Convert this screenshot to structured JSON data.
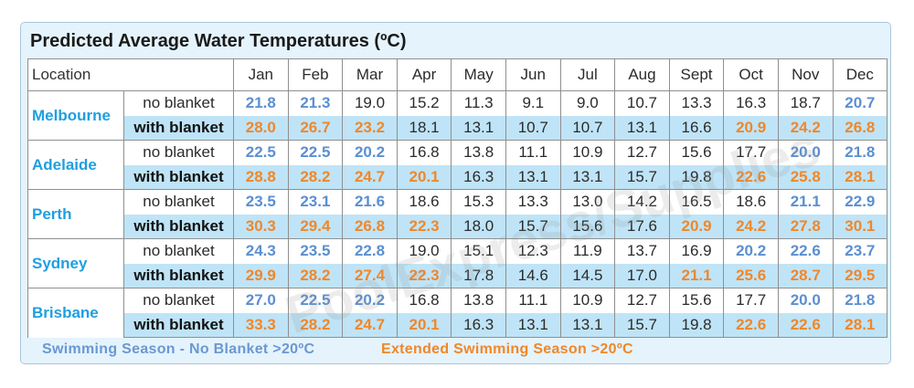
{
  "title": "Predicted Average Water Temperatures (ºC)",
  "header": {
    "location": "Location",
    "months": [
      "Jan",
      "Feb",
      "Mar",
      "Apr",
      "May",
      "Jun",
      "Jul",
      "Aug",
      "Sept",
      "Oct",
      "Nov",
      "Dec"
    ]
  },
  "labels": {
    "no_blanket": "no blanket",
    "with_blanket": "with blanket"
  },
  "colors": {
    "blue": "#5b8fd0",
    "orange": "#f0872a",
    "city": "#1e9fe0",
    "highlight_row": "#bfe4f7"
  },
  "locations": [
    {
      "name": "Melbourne",
      "no_blanket": [
        "21.8",
        "21.3",
        "19.0",
        "15.2",
        "11.3",
        "9.1",
        "9.0",
        "10.7",
        "13.3",
        "16.3",
        "18.7",
        "20.7"
      ],
      "no_blanket_style": [
        "blue",
        "blue",
        "",
        "",
        "",
        "",
        "",
        "",
        "",
        "",
        "",
        "blue"
      ],
      "with_blanket": [
        "28.0",
        "26.7",
        "23.2",
        "18.1",
        "13.1",
        "10.7",
        "10.7",
        "13.1",
        "16.6",
        "20.9",
        "24.2",
        "26.8"
      ],
      "with_blanket_style": [
        "orange",
        "orange",
        "orange",
        "",
        "",
        "",
        "",
        "",
        "",
        "orange",
        "orange",
        "orange"
      ]
    },
    {
      "name": "Adelaide",
      "no_blanket": [
        "22.5",
        "22.5",
        "20.2",
        "16.8",
        "13.8",
        "11.1",
        "10.9",
        "12.7",
        "15.6",
        "17.7",
        "20.0",
        "21.8"
      ],
      "no_blanket_style": [
        "blue",
        "blue",
        "blue",
        "",
        "",
        "",
        "",
        "",
        "",
        "",
        "blue",
        "blue"
      ],
      "with_blanket": [
        "28.8",
        "28.2",
        "24.7",
        "20.1",
        "16.3",
        "13.1",
        "13.1",
        "15.7",
        "19.8",
        "22.6",
        "25.8",
        "28.1"
      ],
      "with_blanket_style": [
        "orange",
        "orange",
        "orange",
        "orange",
        "",
        "",
        "",
        "",
        "",
        "orange",
        "orange",
        "orange"
      ]
    },
    {
      "name": "Perth",
      "no_blanket": [
        "23.5",
        "23.1",
        "21.6",
        "18.6",
        "15.3",
        "13.3",
        "13.0",
        "14.2",
        "16.5",
        "18.6",
        "21.1",
        "22.9"
      ],
      "no_blanket_style": [
        "blue",
        "blue",
        "blue",
        "",
        "",
        "",
        "",
        "",
        "",
        "",
        "blue",
        "blue"
      ],
      "with_blanket": [
        "30.3",
        "29.4",
        "26.8",
        "22.3",
        "18.0",
        "15.7",
        "15.6",
        "17.6",
        "20.9",
        "24.2",
        "27.8",
        "30.1"
      ],
      "with_blanket_style": [
        "orange",
        "orange",
        "orange",
        "orange",
        "",
        "",
        "",
        "",
        "orange",
        "orange",
        "orange",
        "orange"
      ]
    },
    {
      "name": "Sydney",
      "no_blanket": [
        "24.3",
        "23.5",
        "22.8",
        "19.0",
        "15.1",
        "12.3",
        "11.9",
        "13.7",
        "16.9",
        "20.2",
        "22.6",
        "23.7"
      ],
      "no_blanket_style": [
        "blue",
        "blue",
        "blue",
        "",
        "",
        "",
        "",
        "",
        "",
        "blue",
        "blue",
        "blue"
      ],
      "with_blanket": [
        "29.9",
        "28.2",
        "27.4",
        "22.3",
        "17.8",
        "14.6",
        "14.5",
        "17.0",
        "21.1",
        "25.6",
        "28.7",
        "29.5"
      ],
      "with_blanket_style": [
        "orange",
        "orange",
        "orange",
        "orange",
        "",
        "",
        "",
        "",
        "orange",
        "orange",
        "orange",
        "orange"
      ]
    },
    {
      "name": "Brisbane",
      "no_blanket": [
        "27.0",
        "22.5",
        "20.2",
        "16.8",
        "13.8",
        "11.1",
        "10.9",
        "12.7",
        "15.6",
        "17.7",
        "20.0",
        "21.8"
      ],
      "no_blanket_style": [
        "blue",
        "blue",
        "blue",
        "",
        "",
        "",
        "",
        "",
        "",
        "",
        "blue",
        "blue"
      ],
      "with_blanket": [
        "33.3",
        "28.2",
        "24.7",
        "20.1",
        "16.3",
        "13.1",
        "13.1",
        "15.7",
        "19.8",
        "22.6",
        "22.6",
        "28.1"
      ],
      "with_blanket_style": [
        "orange",
        "orange",
        "orange",
        "orange",
        "",
        "",
        "",
        "",
        "",
        "orange",
        "orange",
        "orange"
      ]
    }
  ],
  "legend": {
    "no_blanket": "Swimming Season - No Blanket >20ºC",
    "extended": "Extended Swimming Season >20ºC"
  },
  "watermark": "PoolExpress/Supplies"
}
